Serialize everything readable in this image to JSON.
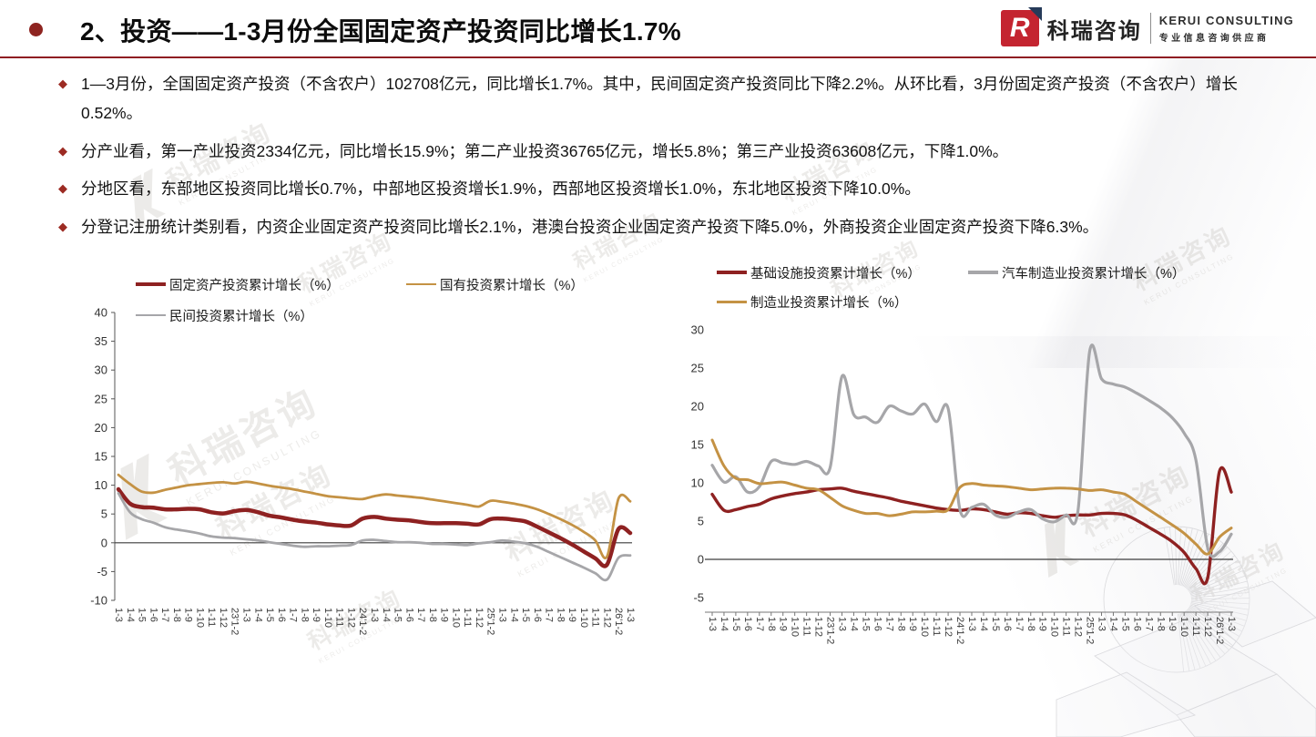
{
  "slide": {
    "title": "2、投资——1-3月份全国固定资产投资同比增长1.7%",
    "bullets": [
      "1—3月份，全国固定资产投资（不含农户）102708亿元，同比增长1.7%。其中，民间固定资产投资同比下降2.2%。从环比看，3月份固定资产投资（不含农户）增长0.52%。",
      "分产业看，第一产业投资2334亿元，同比增长15.9%；第二产业投资36765亿元，增长5.8%；第三产业投资63608亿元，下降1.0%。",
      "分地区看，东部地区投资同比增长0.7%，中部地区投资增长1.9%，西部地区投资增长1.0%，东北地区投资下降10.0%。",
      "分登记注册统计类别看，内资企业固定资产投资同比增长2.1%，港澳台投资企业固定资产投资下降5.0%，外商投资企业固定资产投资下降6.3%。"
    ]
  },
  "logo": {
    "mark": "R",
    "name_cn": "科瑞咨询",
    "name_en": "KERUI  CONSULTING",
    "tagline": "专业信息咨询供应商"
  },
  "watermark": {
    "cn": "科瑞咨询",
    "en": "KERUI CONSULTING"
  },
  "theme": {
    "accent_red": "#8E2121",
    "accent_tan": "#C49244",
    "accent_gray": "#A6A6A9",
    "header_rule": "#8F1D22",
    "logo_red": "#C42430"
  },
  "chart_data": [
    {
      "type": "line",
      "title": "",
      "xlabel": "",
      "ylabel": "",
      "ylim": [
        -10,
        40
      ],
      "ytick_step": 5,
      "grid": false,
      "zero_line": true,
      "legend_position": "top",
      "categories": [
        "1-3",
        "1-4",
        "1-5",
        "1-6",
        "1-7",
        "1-8",
        "1-9",
        "1-10",
        "1-11",
        "1-12",
        "23'1-2",
        "1-3",
        "1-4",
        "1-5",
        "1-6",
        "1-7",
        "1-8",
        "1-9",
        "1-10",
        "1-11",
        "1-12",
        "24'1-2",
        "1-3",
        "1-4",
        "1-5",
        "1-6",
        "1-7",
        "1-8",
        "1-9",
        "1-10",
        "1-11",
        "1-12",
        "25'1-2",
        "1-3",
        "1-4",
        "1-5",
        "1-6",
        "1-7",
        "1-8",
        "1-9",
        "1-10",
        "1-11",
        "1-12",
        "26'1-2",
        "1-3"
      ],
      "series": [
        {
          "name": "固定资产投资累计增长（%）",
          "color": "#8E2121",
          "width": 4.5,
          "values": [
            9.3,
            6.8,
            6.2,
            6.1,
            5.8,
            5.8,
            5.9,
            5.8,
            5.3,
            5.1,
            5.5,
            5.7,
            5.3,
            4.7,
            4.4,
            4.0,
            3.7,
            3.5,
            3.2,
            3.0,
            3.0,
            4.2,
            4.5,
            4.2,
            4.0,
            3.9,
            3.6,
            3.4,
            3.4,
            3.4,
            3.3,
            3.2,
            4.1,
            4.2,
            4.0,
            3.7,
            2.8,
            1.8,
            0.8,
            -0.3,
            -1.5,
            -2.7,
            -3.8,
            2.4,
            1.7
          ]
        },
        {
          "name": "国有投资累计增长（%）",
          "color": "#C49244",
          "width": 2.8,
          "values": [
            11.8,
            10.2,
            8.9,
            8.7,
            9.2,
            9.6,
            10.0,
            10.2,
            10.4,
            10.5,
            10.3,
            10.6,
            10.3,
            9.9,
            9.6,
            9.3,
            8.9,
            8.5,
            8.1,
            7.9,
            7.7,
            7.6,
            8.1,
            8.4,
            8.2,
            8.0,
            7.8,
            7.5,
            7.2,
            6.9,
            6.6,
            6.3,
            7.3,
            7.1,
            6.8,
            6.4,
            5.8,
            5.0,
            4.1,
            3.1,
            1.9,
            0.4,
            -2.4,
            7.7,
            7.2
          ]
        },
        {
          "name": "民间投资累计增长（%）",
          "color": "#A6A6A9",
          "width": 2.8,
          "values": [
            8.6,
            5.3,
            4.1,
            3.5,
            2.7,
            2.3,
            2.0,
            1.6,
            1.1,
            0.9,
            0.8,
            0.6,
            0.4,
            0.1,
            -0.2,
            -0.5,
            -0.7,
            -0.6,
            -0.6,
            -0.5,
            -0.4,
            0.4,
            0.5,
            0.3,
            0.1,
            0.1,
            0.0,
            -0.2,
            -0.2,
            -0.3,
            -0.4,
            -0.1,
            0.1,
            0.4,
            0.2,
            -0.1,
            -0.7,
            -1.6,
            -2.5,
            -3.4,
            -4.3,
            -5.3,
            -6.4,
            -2.6,
            -2.2
          ]
        }
      ]
    },
    {
      "type": "line",
      "title": "",
      "xlabel": "",
      "ylabel": "",
      "ylim": [
        -5,
        30
      ],
      "ytick_step": 5,
      "grid": false,
      "zero_line": true,
      "legend_position": "top",
      "categories": [
        "1-3",
        "1-4",
        "1-5",
        "1-6",
        "1-7",
        "1-8",
        "1-9",
        "1-10",
        "1-11",
        "1-12",
        "23'1-2",
        "1-3",
        "1-4",
        "1-5",
        "1-6",
        "1-7",
        "1-8",
        "1-9",
        "1-10",
        "1-11",
        "1-12",
        "24'1-2",
        "1-3",
        "1-4",
        "1-5",
        "1-6",
        "1-7",
        "1-8",
        "1-9",
        "1-10",
        "1-11",
        "1-12",
        "25'1-2",
        "1-3",
        "1-4",
        "1-5",
        "1-6",
        "1-7",
        "1-8",
        "1-9",
        "1-10",
        "1-11",
        "1-12",
        "26'1-2",
        "1-3"
      ],
      "series": [
        {
          "name": "基础设施投资累计增长（%）",
          "color": "#8E2121",
          "width": 3.4,
          "values": [
            8.5,
            6.4,
            6.5,
            6.9,
            7.2,
            7.9,
            8.3,
            8.6,
            8.8,
            9.1,
            9.2,
            9.3,
            8.9,
            8.6,
            8.3,
            8.0,
            7.6,
            7.3,
            7.0,
            6.7,
            6.5,
            6.4,
            6.6,
            6.5,
            6.2,
            5.9,
            6.1,
            6.0,
            5.7,
            5.5,
            5.7,
            5.8,
            5.8,
            6.0,
            6.0,
            5.8,
            5.1,
            4.2,
            3.3,
            2.3,
            0.9,
            -1.2,
            -2.4,
            11.5,
            8.8
          ]
        },
        {
          "name": "汽车制造业投资累计增长（%）",
          "color": "#A6A6A9",
          "width": 3.2,
          "values": [
            12.3,
            10.1,
            10.8,
            8.8,
            9.5,
            12.8,
            12.6,
            12.4,
            12.8,
            12.2,
            12.0,
            23.9,
            18.9,
            18.6,
            17.9,
            20.0,
            19.4,
            19.0,
            20.3,
            18.0,
            19.7,
            6.5,
            6.8,
            7.2,
            5.8,
            5.5,
            6.2,
            6.5,
            5.3,
            4.9,
            5.8,
            6.3,
            27.2,
            23.6,
            22.9,
            22.5,
            21.7,
            20.8,
            19.8,
            18.5,
            16.5,
            13.0,
            1.5,
            1.0,
            3.3
          ]
        },
        {
          "name": "制造业投资累计增长（%）",
          "color": "#C49244",
          "width": 3.0,
          "values": [
            15.6,
            12.2,
            10.6,
            10.4,
            9.9,
            10.0,
            10.1,
            9.7,
            9.3,
            9.1,
            8.1,
            7.0,
            6.4,
            6.0,
            6.0,
            5.7,
            5.9,
            6.2,
            6.2,
            6.3,
            6.5,
            9.4,
            9.9,
            9.7,
            9.6,
            9.5,
            9.3,
            9.1,
            9.2,
            9.3,
            9.3,
            9.2,
            9.0,
            9.1,
            8.8,
            8.5,
            7.5,
            6.5,
            5.5,
            4.5,
            3.4,
            2.0,
            0.7,
            2.9,
            4.1
          ]
        }
      ]
    }
  ]
}
